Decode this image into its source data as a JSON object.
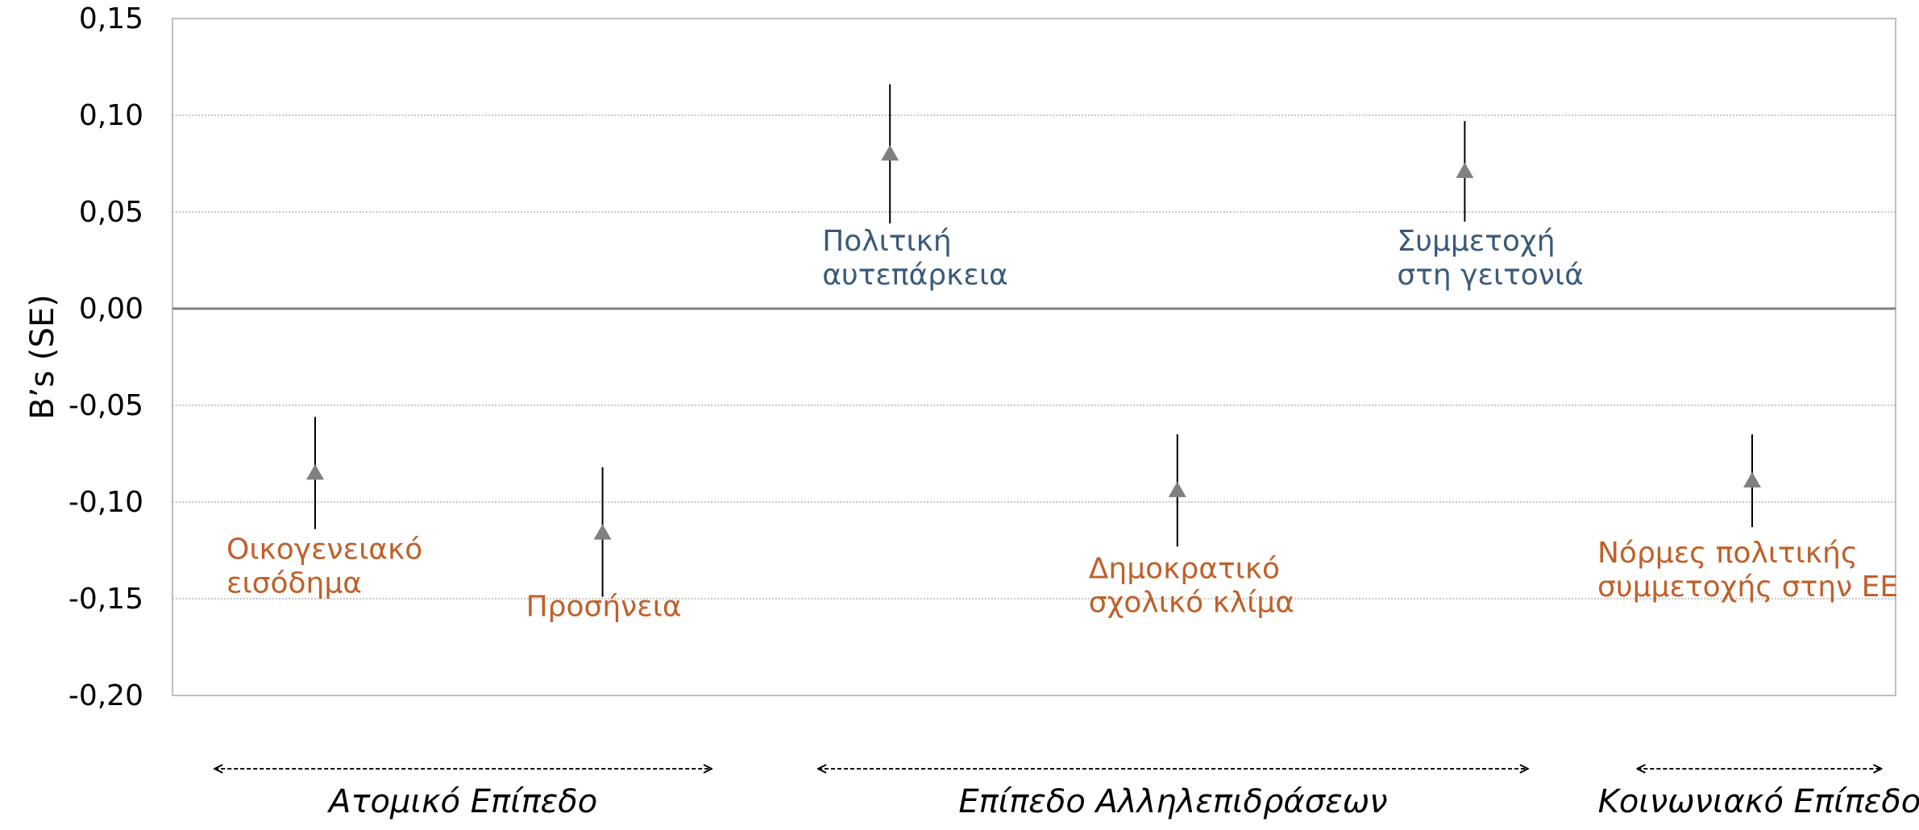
{
  "chart_data": {
    "type": "scatter",
    "title": "",
    "xlabel": "",
    "ylabel": "B’s (SE)",
    "ylim": [
      -0.2,
      0.15
    ],
    "yticks": [
      0.15,
      0.1,
      0.05,
      0.0,
      -0.05,
      -0.1,
      -0.15,
      -0.2
    ],
    "ytick_labels": [
      "0,15",
      "0,10",
      "0,05",
      "0,00",
      "-0,05",
      "-0,10",
      "-0,15",
      "-0,20"
    ],
    "grid": true,
    "marker": "triangle",
    "marker_color": "#808080",
    "positive_label_color": "#3b5a7a",
    "negative_label_color": "#c0602a",
    "points": [
      {
        "label": [
          "Οικογενειακό",
          "εισόδημα"
        ],
        "x": 1,
        "y": -0.085,
        "ci": [
          -0.114,
          -0.056
        ],
        "group": 0
      },
      {
        "label": [
          "Προσήνεια"
        ],
        "x": 2,
        "y": -0.116,
        "ci": [
          -0.149,
          -0.082
        ],
        "group": 0
      },
      {
        "label": [
          "Πολιτική",
          "αυτεπάρκεια"
        ],
        "x": 3,
        "y": 0.08,
        "ci": [
          0.044,
          0.116
        ],
        "group": 1
      },
      {
        "label": [
          "Δημοκρατικό",
          "σχολικό κλίμα"
        ],
        "x": 4,
        "y": -0.094,
        "ci": [
          -0.123,
          -0.065
        ],
        "group": 1
      },
      {
        "label": [
          "Συμμετοχή",
          "στη γειτονιά"
        ],
        "x": 5,
        "y": 0.071,
        "ci": [
          0.045,
          0.097
        ],
        "group": 1
      },
      {
        "label": [
          "Νόρμες πολιτικής",
          "συμμετοχής στην ΕΕ"
        ],
        "x": 6,
        "y": -0.089,
        "ci": [
          -0.113,
          -0.065
        ],
        "group": 2
      }
    ],
    "groups": [
      {
        "name": "Ατομικό Επίπεδο",
        "from": 0.65,
        "to": 2.38
      },
      {
        "name": "Επίπεδο Αλληλεπιδράσεων",
        "from": 2.75,
        "to": 5.22
      },
      {
        "name": "Κοινωνιακό Επίπεδο",
        "from": 5.6,
        "to": 6.45
      }
    ]
  }
}
